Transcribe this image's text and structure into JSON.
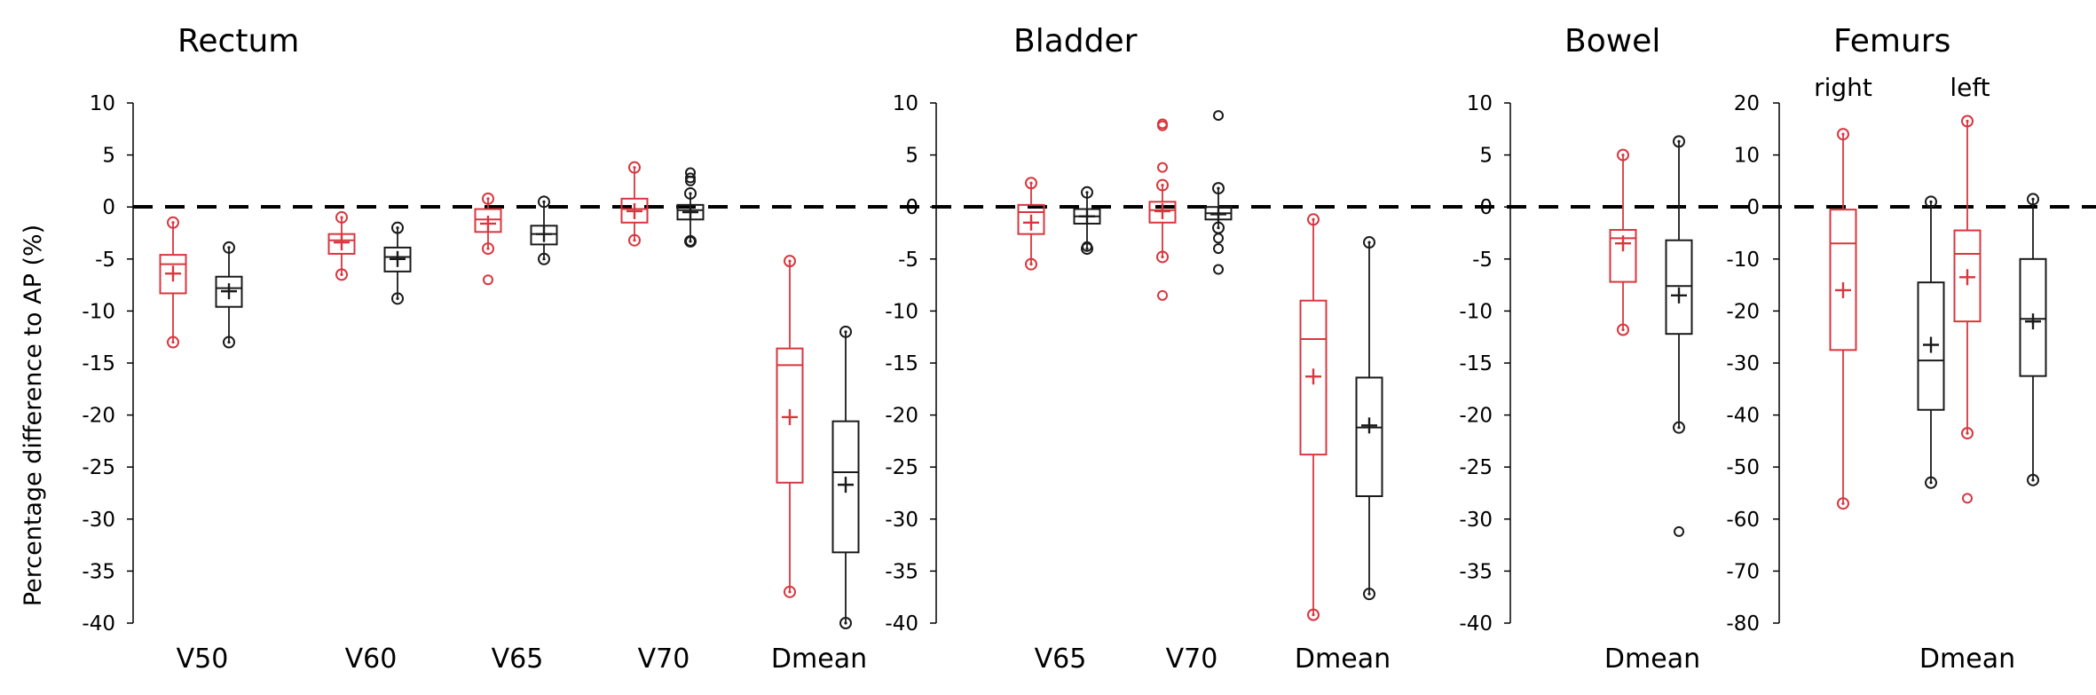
{
  "figure": {
    "ylabel": "Percentage difference to AP (%)",
    "zero_line_style": "dashed",
    "colors": {
      "red": "#d9363e",
      "black": "#1a1a1a",
      "dash": "#000000"
    }
  },
  "chart_data": [
    {
      "type": "box",
      "title": "Rectum",
      "ylim": [
        -40,
        10
      ],
      "yticks": [
        10,
        5,
        0,
        -5,
        -10,
        -15,
        -20,
        -25,
        -30,
        -35,
        -40
      ],
      "categories": [
        "V50",
        "V60",
        "V65",
        "V70",
        "Dmean"
      ],
      "series": [
        {
          "name": "red",
          "color": "#d9363e",
          "boxes": [
            {
              "category": "V50",
              "min": -13,
              "q1": -8.3,
              "median": -5.5,
              "q3": -4.6,
              "max": -1.5,
              "mean": -6.4,
              "outliers": []
            },
            {
              "category": "V60",
              "min": -6.5,
              "q1": -4.5,
              "median": -3.2,
              "q3": -2.6,
              "max": -1.0,
              "mean": -3.4,
              "outliers": []
            },
            {
              "category": "V65",
              "min": -4,
              "q1": -2.4,
              "median": -1.2,
              "q3": -0.2,
              "max": 0.8,
              "mean": -1.6,
              "outliers": [
                -7
              ]
            },
            {
              "category": "V70",
              "min": -3.2,
              "q1": -1.5,
              "median": -0.2,
              "q3": 0.8,
              "max": 3.8,
              "mean": -0.4,
              "outliers": []
            },
            {
              "category": "Dmean",
              "min": -37,
              "q1": -26.5,
              "median": -15.2,
              "q3": -13.6,
              "max": -5.2,
              "mean": -20.2,
              "outliers": []
            }
          ]
        },
        {
          "name": "black",
          "color": "#1a1a1a",
          "boxes": [
            {
              "category": "V50",
              "min": -13,
              "q1": -9.6,
              "median": -7.8,
              "q3": -6.7,
              "max": -3.9,
              "mean": -8.1,
              "outliers": []
            },
            {
              "category": "V60",
              "min": -8.8,
              "q1": -6.2,
              "median": -4.8,
              "q3": -3.9,
              "max": -2.0,
              "mean": -5.0,
              "outliers": []
            },
            {
              "category": "V65",
              "min": -5.0,
              "q1": -3.6,
              "median": -2.6,
              "q3": -1.8,
              "max": 0.5,
              "mean": -2.6,
              "outliers": []
            },
            {
              "category": "V70",
              "min": -3.3,
              "q1": -1.2,
              "median": -0.3,
              "q3": 0.2,
              "max": 1.3,
              "mean": -0.5,
              "outliers": [
                3.3,
                2.8,
                2.5,
                -3.3
              ]
            },
            {
              "category": "Dmean",
              "min": -40,
              "q1": -33.2,
              "median": -25.5,
              "q3": -20.6,
              "max": -12,
              "mean": -26.7,
              "outliers": []
            }
          ]
        }
      ]
    },
    {
      "type": "box",
      "title": "Bladder",
      "ylim": [
        -40,
        10
      ],
      "yticks": [
        10,
        5,
        0,
        -5,
        -10,
        -15,
        -20,
        -25,
        -30,
        -35,
        -40
      ],
      "categories": [
        "V65",
        "V70",
        "Dmean"
      ],
      "series": [
        {
          "name": "red",
          "color": "#d9363e",
          "boxes": [
            {
              "category": "V65",
              "min": -5.5,
              "q1": -2.6,
              "median": -0.5,
              "q3": 0.2,
              "max": 2.3,
              "mean": -1.5,
              "outliers": []
            },
            {
              "category": "V70",
              "min": -4.8,
              "q1": -1.5,
              "median": -0.3,
              "q3": 0.5,
              "max": 2.1,
              "mean": -0.4,
              "outliers": [
                8.0,
                7.8,
                3.8,
                -8.5
              ]
            },
            {
              "category": "Dmean",
              "min": -39.2,
              "q1": -23.8,
              "median": -12.7,
              "q3": -9.0,
              "max": -1.2,
              "mean": -16.3,
              "outliers": []
            }
          ]
        },
        {
          "name": "black",
          "color": "#1a1a1a",
          "boxes": [
            {
              "category": "V65",
              "min": -4.0,
              "q1": -1.6,
              "median": -0.9,
              "q3": -0.2,
              "max": 1.4,
              "mean": -0.9,
              "outliers": [
                -3.8
              ]
            },
            {
              "category": "V70",
              "min": -2.0,
              "q1": -1.2,
              "median": -0.6,
              "q3": 0.0,
              "max": 1.8,
              "mean": -0.7,
              "outliers": [
                8.8,
                -3.0,
                -4.0,
                -6.0
              ]
            },
            {
              "category": "Dmean",
              "min": -37.2,
              "q1": -27.8,
              "median": -21.2,
              "q3": -16.4,
              "max": -3.4,
              "mean": -21.0,
              "outliers": []
            }
          ]
        }
      ]
    },
    {
      "type": "box",
      "title": "Bowel",
      "ylim": [
        -40,
        10
      ],
      "yticks": [
        10,
        5,
        0,
        -5,
        -10,
        -15,
        -20,
        -25,
        -30,
        -35,
        -40
      ],
      "categories": [
        "Dmean"
      ],
      "series": [
        {
          "name": "red",
          "color": "#d9363e",
          "boxes": [
            {
              "category": "Dmean",
              "min": -11.8,
              "q1": -7.2,
              "median": -3.0,
              "q3": -2.2,
              "max": 5.0,
              "mean": -3.5,
              "outliers": []
            }
          ]
        },
        {
          "name": "black",
          "color": "#1a1a1a",
          "boxes": [
            {
              "category": "Dmean",
              "min": -21.2,
              "q1": -12.2,
              "median": -7.6,
              "q3": -3.2,
              "max": 6.3,
              "mean": -8.5,
              "outliers": [
                -31.2
              ]
            }
          ]
        }
      ]
    },
    {
      "type": "box",
      "title": "Femurs",
      "ylim": [
        -80,
        20
      ],
      "yticks": [
        20,
        10,
        0,
        -10,
        -20,
        -30,
        -40,
        -50,
        -60,
        -70,
        -80
      ],
      "categories": [
        "Dmean"
      ],
      "subgroups": [
        "right",
        "left"
      ],
      "series": [
        {
          "name": "red",
          "color": "#d9363e",
          "boxes": [
            {
              "category": "Dmean",
              "subgroup": "right",
              "min": -57,
              "q1": -27.5,
              "median": -7.0,
              "q3": -0.5,
              "max": 14,
              "mean": -16.0,
              "outliers": []
            },
            {
              "category": "Dmean",
              "subgroup": "left",
              "min": -43.5,
              "q1": -22.0,
              "median": -9.0,
              "q3": -4.5,
              "max": 16.5,
              "mean": -13.5,
              "outliers": [
                -56
              ]
            }
          ]
        },
        {
          "name": "black",
          "color": "#1a1a1a",
          "boxes": [
            {
              "category": "Dmean",
              "subgroup": "right",
              "min": -53,
              "q1": -39,
              "median": -29.5,
              "q3": -14.5,
              "max": 1,
              "mean": -26.5,
              "outliers": []
            },
            {
              "category": "Dmean",
              "subgroup": "left",
              "min": -52.5,
              "q1": -32.5,
              "median": -21.5,
              "q3": -10,
              "max": 1.5,
              "mean": -22.0,
              "outliers": []
            }
          ]
        }
      ]
    }
  ]
}
